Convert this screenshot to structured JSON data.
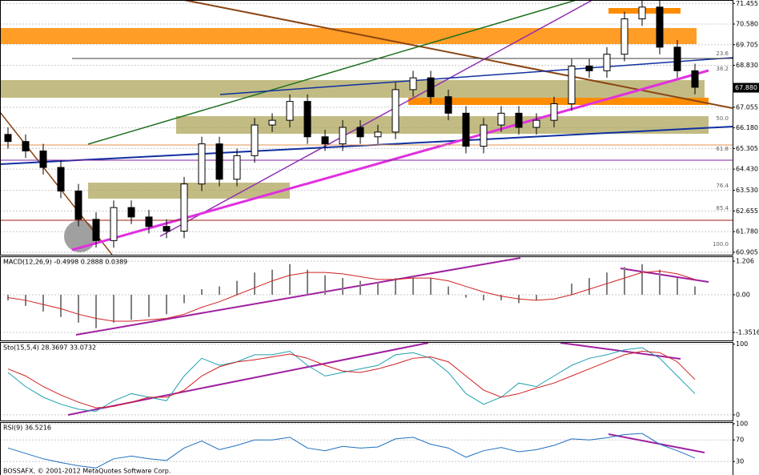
{
  "chart_data": [
    {
      "type": "candlestick",
      "open": [
        65.9,
        65.6,
        65.2,
        64.5,
        63.5,
        62.3,
        61.4,
        62.8,
        62.4,
        62.0,
        61.8,
        63.8,
        65.5,
        64.0,
        65.0,
        66.3,
        66.5,
        67.3,
        65.8,
        65.5,
        66.2,
        65.8,
        66.0,
        67.8,
        68.3,
        67.5,
        66.8,
        65.4,
        66.3,
        66.8,
        66.2,
        66.5,
        67.2,
        68.8,
        68.6,
        69.3,
        70.8,
        71.3,
        69.6,
        68.6
      ],
      "high": [
        66.2,
        65.9,
        65.5,
        64.8,
        63.8,
        62.6,
        63.1,
        63.1,
        62.7,
        62.3,
        64.1,
        65.8,
        65.8,
        65.3,
        66.6,
        66.8,
        67.6,
        67.6,
        66.1,
        66.5,
        66.5,
        66.3,
        68.1,
        68.6,
        68.6,
        67.8,
        67.1,
        66.6,
        67.1,
        67.1,
        66.8,
        67.5,
        69.1,
        69.1,
        69.6,
        71.1,
        71.6,
        71.6,
        69.9,
        68.9
      ],
      "low": [
        65.3,
        64.9,
        64.2,
        63.2,
        62.0,
        61.1,
        61.1,
        62.1,
        61.7,
        61.5,
        61.5,
        63.5,
        63.7,
        63.7,
        64.7,
        66.0,
        66.2,
        65.5,
        65.2,
        65.2,
        65.5,
        65.5,
        65.7,
        67.5,
        67.2,
        66.5,
        65.1,
        65.1,
        66.0,
        65.9,
        65.9,
        66.2,
        66.9,
        68.3,
        68.3,
        69.0,
        70.5,
        69.3,
        68.3,
        67.6
      ],
      "close": [
        65.6,
        65.2,
        64.5,
        63.5,
        62.3,
        61.4,
        62.8,
        62.4,
        62.0,
        61.8,
        63.8,
        65.5,
        64.0,
        65.0,
        66.3,
        66.5,
        67.3,
        65.8,
        65.5,
        66.2,
        65.8,
        66.0,
        67.8,
        68.3,
        67.5,
        66.8,
        65.4,
        66.3,
        66.8,
        66.2,
        66.5,
        67.2,
        68.8,
        68.6,
        69.3,
        70.8,
        71.3,
        69.6,
        68.6,
        67.9
      ],
      "ylim": [
        60.8,
        71.6
      ],
      "yticks": [
        {
          "value": 71.455,
          "label": "71.455"
        },
        {
          "value": 70.58,
          "label": "70.580"
        },
        {
          "value": 69.705,
          "label": "69.705"
        },
        {
          "value": 68.83,
          "label": "68.830"
        },
        {
          "value": 67.055,
          "label": "67.055"
        },
        {
          "value": 66.18,
          "label": "66.180"
        },
        {
          "value": 65.305,
          "label": "65.305"
        },
        {
          "value": 64.43,
          "label": "64.430"
        },
        {
          "value": 63.53,
          "label": "63.530"
        },
        {
          "value": 62.655,
          "label": "62.655"
        },
        {
          "value": 61.78,
          "label": "61.780"
        },
        {
          "value": 60.905,
          "label": "60.905"
        }
      ],
      "last_price": {
        "value": 67.88,
        "label": "67.880"
      },
      "annotations": [
        "23.6",
        "38.2",
        "50.0",
        "61.8",
        "76.4",
        "85.4",
        "100.0"
      ],
      "grid": true
    },
    {
      "type": "indicator",
      "title": "MACD(12,26,9) -0.4998 0.2888 0.0389",
      "series": [
        {
          "color": "#808080",
          "style": "bar",
          "values": [
            -0.2,
            -0.4,
            -0.6,
            -0.8,
            -1.0,
            -1.2,
            -1.0,
            -0.9,
            -0.8,
            -0.7,
            -0.3,
            0.2,
            0.3,
            0.5,
            0.8,
            0.9,
            1.1,
            0.9,
            0.7,
            0.6,
            0.5,
            0.45,
            0.6,
            0.7,
            0.6,
            0.3,
            -0.1,
            -0.2,
            -0.2,
            -0.3,
            -0.2,
            0.0,
            0.4,
            0.6,
            0.8,
            1.0,
            1.1,
            0.9,
            0.6,
            0.3
          ]
        },
        {
          "color": "#d02020",
          "values": [
            -0.1,
            -0.2,
            -0.35,
            -0.5,
            -0.7,
            -0.85,
            -0.95,
            -0.95,
            -0.9,
            -0.85,
            -0.7,
            -0.45,
            -0.25,
            0.0,
            0.25,
            0.5,
            0.7,
            0.8,
            0.8,
            0.75,
            0.65,
            0.55,
            0.55,
            0.6,
            0.6,
            0.5,
            0.3,
            0.1,
            -0.05,
            -0.15,
            -0.2,
            -0.15,
            0.0,
            0.2,
            0.4,
            0.6,
            0.8,
            0.85,
            0.75,
            0.55
          ]
        }
      ],
      "ylim": [
        -1.64,
        1.38
      ],
      "yticks": [
        1.206,
        {
          "value": 0,
          "label": "0.00"
        },
        -1.3516
      ],
      "grid": true
    },
    {
      "type": "indicator",
      "title": "Sto(15,5,4) 28.3697 33.0732",
      "series": [
        {
          "color": "#20a0b0",
          "values": [
            60,
            40,
            25,
            15,
            8,
            5,
            20,
            30,
            25,
            20,
            55,
            80,
            70,
            75,
            85,
            85,
            90,
            70,
            55,
            60,
            65,
            70,
            85,
            88,
            80,
            60,
            30,
            15,
            25,
            45,
            40,
            55,
            70,
            80,
            85,
            92,
            95,
            80,
            55,
            30
          ]
        },
        {
          "color": "#d02020",
          "values": [
            65,
            55,
            40,
            28,
            18,
            10,
            12,
            18,
            25,
            25,
            35,
            55,
            68,
            75,
            78,
            82,
            86,
            80,
            70,
            62,
            60,
            65,
            72,
            80,
            82,
            75,
            55,
            35,
            25,
            30,
            38,
            45,
            55,
            65,
            75,
            85,
            90,
            88,
            75,
            50
          ]
        }
      ],
      "ylim": [
        -8,
        103
      ],
      "yticks": [
        100,
        0
      ],
      "grid": true
    },
    {
      "type": "indicator",
      "title": "RSI(9) 36.5216",
      "series": [
        {
          "color": "#2070c0",
          "values": [
            55,
            45,
            35,
            28,
            22,
            18,
            35,
            40,
            35,
            32,
            55,
            68,
            52,
            60,
            70,
            70,
            75,
            55,
            50,
            58,
            55,
            57,
            72,
            75,
            62,
            55,
            38,
            50,
            56,
            48,
            52,
            60,
            72,
            70,
            74,
            80,
            82,
            62,
            50,
            36.5
          ]
        }
      ],
      "ylim": [
        5,
        103
      ],
      "yticks": [
        100,
        70,
        30
      ],
      "grid": true
    }
  ],
  "footer": "BOSSAFX, © 2001-2012 MetaQuotes Software Corp."
}
